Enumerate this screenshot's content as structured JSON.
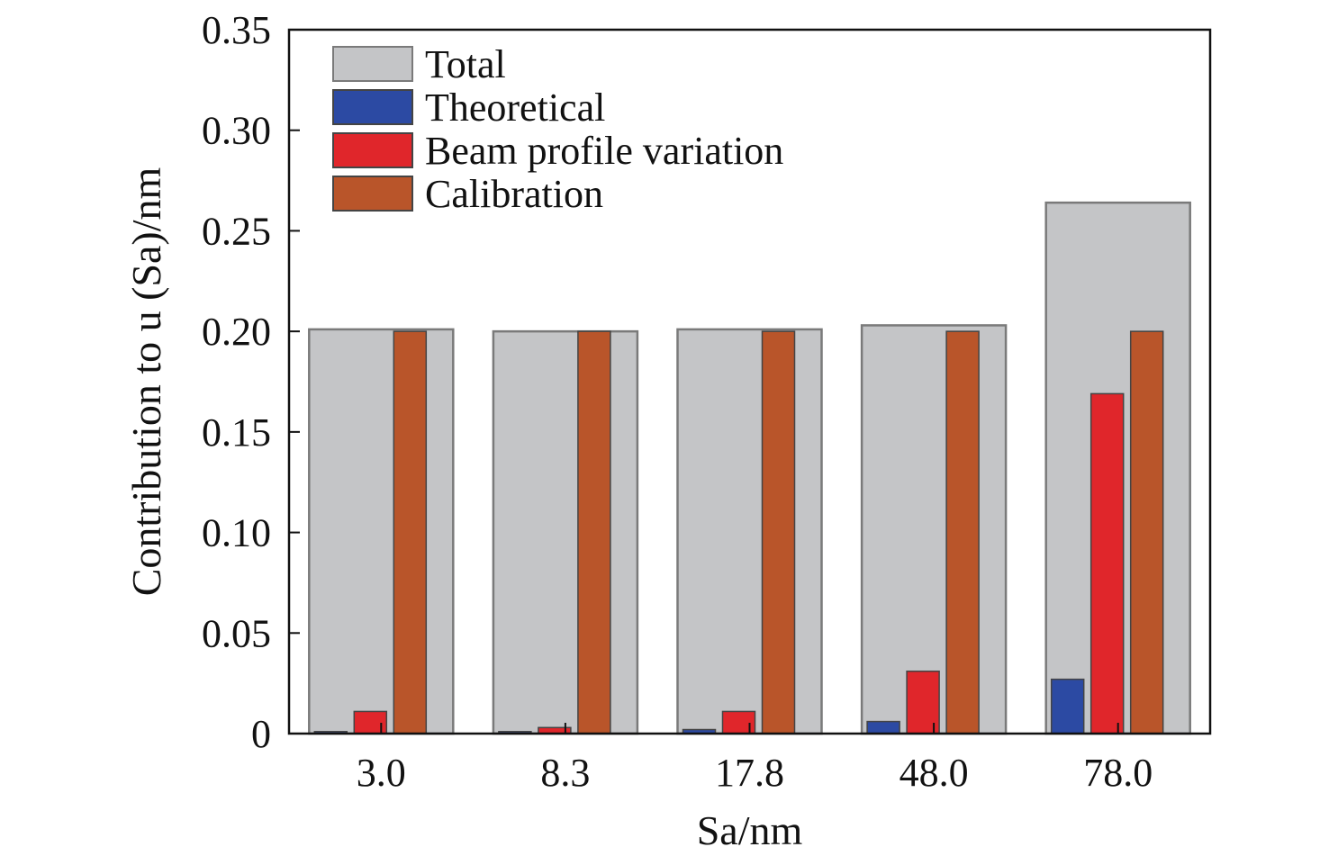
{
  "chart_data": {
    "type": "bar",
    "title": "",
    "xlabel": "Sa/nm",
    "ylabel": "Contribution to u (Sa)/nm",
    "categories": [
      "3.0",
      "8.3",
      "17.8",
      "48.0",
      "78.0"
    ],
    "ylim": [
      0,
      0.35
    ],
    "yticks": [
      {
        "value": 0,
        "label": "0"
      },
      {
        "value": 0.05,
        "label": "0.05"
      },
      {
        "value": 0.1,
        "label": "0.10"
      },
      {
        "value": 0.15,
        "label": "0.15"
      },
      {
        "value": 0.2,
        "label": "0.20"
      },
      {
        "value": 0.25,
        "label": "0.25"
      },
      {
        "value": 0.3,
        "label": "0.30"
      },
      {
        "value": 0.35,
        "label": "0.35"
      }
    ],
    "grid": false,
    "legend_position": "top-left",
    "series": [
      {
        "name": "Total",
        "color": "#c4c5c7",
        "values": [
          0.201,
          0.2,
          0.201,
          0.203,
          0.264
        ]
      },
      {
        "name": "Theoretical",
        "color": "#2c4aa3",
        "values": [
          0.001,
          0.001,
          0.002,
          0.006,
          0.027
        ]
      },
      {
        "name": "Beam profile variation",
        "color": "#e0262b",
        "values": [
          0.011,
          0.003,
          0.011,
          0.031,
          0.169
        ]
      },
      {
        "name": "Calibration",
        "color": "#b9552a",
        "values": [
          0.2,
          0.2,
          0.2,
          0.2,
          0.2
        ]
      }
    ]
  }
}
